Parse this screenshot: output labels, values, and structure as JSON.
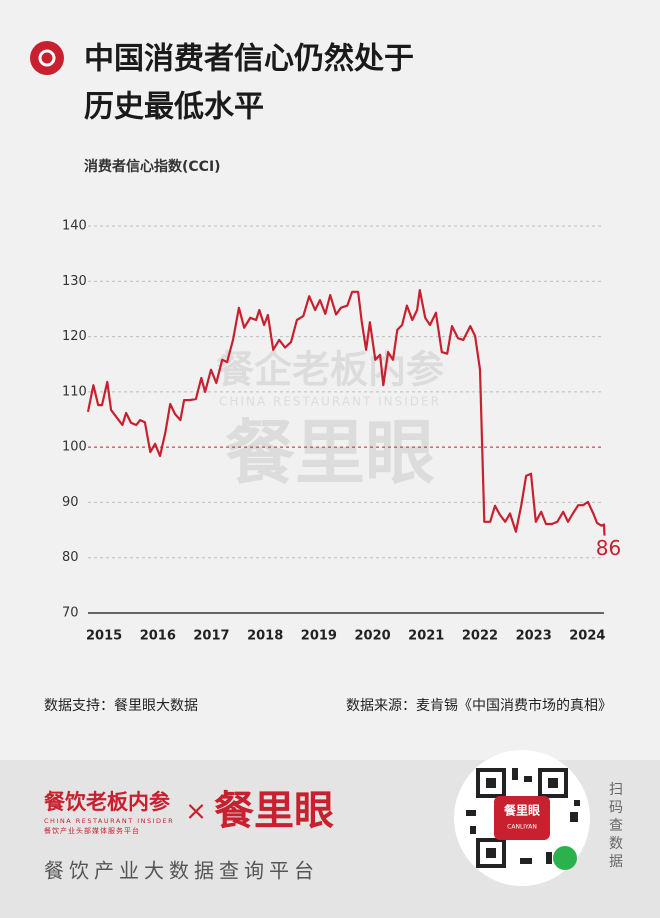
{
  "chart_data": {
    "type": "line",
    "title_lines": [
      "中国消费者信心仍然处于",
      "历史最低水平"
    ],
    "y_axis_label": "消费者信心指数(CCI)",
    "x": [
      2014.7,
      2014.8,
      2014.89,
      2014.96,
      2015.06,
      2015.13,
      2015.24,
      2015.34,
      2015.41,
      2015.5,
      2015.6,
      2015.67,
      2015.76,
      2015.86,
      2015.95,
      2016.04,
      2016.14,
      2016.23,
      2016.32,
      2016.42,
      2016.49,
      2016.6,
      2016.71,
      2016.81,
      2016.88,
      2016.99,
      2017.09,
      2017.2,
      2017.29,
      2017.4,
      2017.51,
      2017.61,
      2017.72,
      2017.83,
      2017.89,
      2017.98,
      2018.05,
      2018.15,
      2018.26,
      2018.37,
      2018.48,
      2018.59,
      2018.71,
      2018.82,
      2018.93,
      2019.02,
      2019.12,
      2019.21,
      2019.32,
      2019.41,
      2019.53,
      2019.62,
      2019.73,
      2019.8,
      2019.88,
      2019.95,
      2020.05,
      2020.14,
      2020.2,
      2020.29,
      2020.38,
      2020.46,
      2020.55,
      2020.64,
      2020.74,
      2020.83,
      2020.88,
      2020.98,
      2021.07,
      2021.18,
      2021.29,
      2021.39,
      2021.48,
      2021.59,
      2021.69,
      2021.82,
      2021.91,
      2022.0,
      2022.08,
      2022.19,
      2022.28,
      2022.37,
      2022.47,
      2022.56,
      2022.67,
      2022.77,
      2022.86,
      2022.95,
      2023.04,
      2023.14,
      2023.23,
      2023.34,
      2023.44,
      2023.55,
      2023.64,
      2023.73,
      2023.83,
      2023.92,
      2024.01,
      2024.11,
      2024.18,
      2024.26,
      2024.31,
      2024.32
    ],
    "values": [
      106.4,
      111.2,
      107.6,
      107.6,
      111.8,
      106.7,
      105.3,
      104.0,
      106.2,
      104.4,
      104.0,
      104.9,
      104.5,
      99.1,
      100.6,
      98.4,
      102.6,
      107.8,
      106.0,
      104.9,
      108.5,
      108.5,
      108.7,
      112.5,
      110.0,
      114.0,
      111.6,
      115.8,
      115.4,
      119.4,
      125.2,
      121.6,
      123.4,
      123.0,
      124.8,
      122.1,
      123.9,
      117.6,
      119.4,
      118.0,
      119.0,
      123.0,
      123.7,
      127.3,
      124.8,
      126.6,
      124.1,
      127.5,
      124.0,
      125.2,
      125.6,
      128.1,
      128.1,
      122.6,
      117.6,
      122.6,
      115.8,
      116.7,
      111.2,
      117.2,
      115.8,
      121.2,
      122.1,
      125.6,
      123.0,
      124.8,
      128.4,
      123.4,
      122.1,
      124.3,
      117.2,
      116.9,
      121.9,
      119.7,
      119.4,
      121.9,
      120.1,
      114.0,
      86.5,
      86.5,
      89.4,
      87.8,
      86.5,
      88.0,
      84.7,
      89.5,
      94.8,
      95.2,
      86.5,
      88.3,
      86.1,
      86.1,
      86.5,
      88.3,
      86.5,
      88.0,
      89.5,
      89.5,
      90.1,
      88.0,
      86.3,
      85.8,
      86.0,
      84.0
    ],
    "color": "#c8202f",
    "xlim": [
      2014.7,
      2024.31
    ],
    "xticks": [
      2015,
      2016,
      2017,
      2018,
      2019,
      2020,
      2021,
      2022,
      2023,
      2024
    ],
    "ylim": [
      70,
      140
    ],
    "yticks": [
      70,
      80,
      90,
      100,
      110,
      120,
      130,
      140
    ],
    "reference_line": 100,
    "grid": true,
    "annotation": "86",
    "watermark": [
      "餐企老板内参",
      "CHINA RESTAURANT INSIDER",
      "餐里眼"
    ]
  },
  "footer": {
    "data_support": "数据支持：餐里眼大数据",
    "data_source": "数据来源：麦肯锡《中国消费市场的真相》"
  },
  "branding": {
    "brand1": "餐饮老板内参",
    "brand1_en": "CHINA RESTAURANT INSIDER",
    "brand1_sub": "餐饮产业头部媒体服务平台",
    "times": "×",
    "brand2": "餐里眼",
    "slogan": "餐饮产业大数据查询平台",
    "qr_label": "餐里眼",
    "qr_sub": "CANLIYAN",
    "scan": [
      "扫",
      "码",
      "查",
      "数",
      "据"
    ]
  }
}
